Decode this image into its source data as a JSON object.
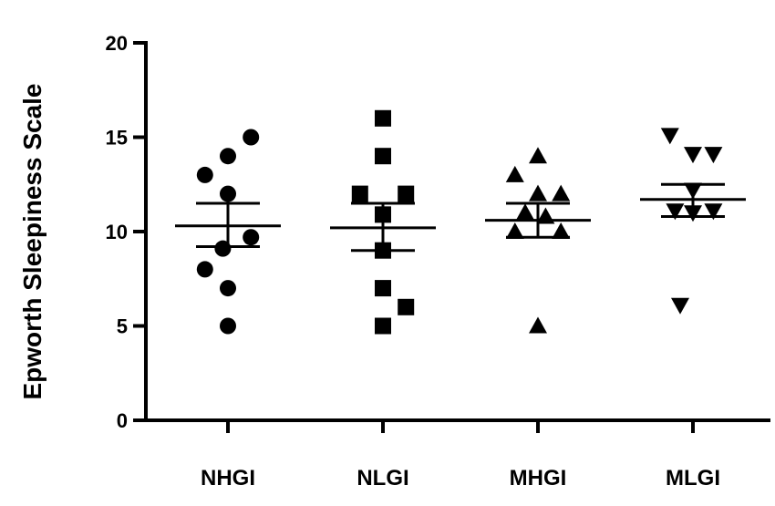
{
  "chart_data": {
    "type": "scatter",
    "title": "",
    "xlabel": "",
    "ylabel": "Epworth Sleepiness Scale",
    "ylim": [
      0,
      20
    ],
    "yticks": [
      0,
      5,
      10,
      15,
      20
    ],
    "grid": false,
    "legend": "none",
    "categories": [
      "NHGI",
      "NLGI",
      "MHGI",
      "MLGI"
    ],
    "series": [
      {
        "category": "NHGI",
        "marker": "circle",
        "mean": 10.3,
        "sem_upper": 11.5,
        "sem_lower": 9.2,
        "points": [
          {
            "offset": 0.9,
            "y": 15
          },
          {
            "offset": 0.0,
            "y": 14
          },
          {
            "offset": -0.9,
            "y": 13
          },
          {
            "offset": 0.0,
            "y": 12
          },
          {
            "offset": 0.9,
            "y": 9.7
          },
          {
            "offset": -0.2,
            "y": 9.1
          },
          {
            "offset": -0.9,
            "y": 8
          },
          {
            "offset": 0.0,
            "y": 7
          },
          {
            "offset": 0.0,
            "y": 5
          }
        ]
      },
      {
        "category": "NLGI",
        "marker": "square",
        "mean": 10.2,
        "sem_upper": 11.5,
        "sem_lower": 9.0,
        "points": [
          {
            "offset": 0.0,
            "y": 16
          },
          {
            "offset": 0.0,
            "y": 14
          },
          {
            "offset": -0.9,
            "y": 12
          },
          {
            "offset": 0.9,
            "y": 12
          },
          {
            "offset": 0.0,
            "y": 10.9
          },
          {
            "offset": 0.0,
            "y": 9
          },
          {
            "offset": 0.0,
            "y": 7
          },
          {
            "offset": 0.9,
            "y": 6
          },
          {
            "offset": 0.0,
            "y": 5
          }
        ]
      },
      {
        "category": "MHGI",
        "marker": "triangle-up",
        "mean": 10.6,
        "sem_upper": 11.5,
        "sem_lower": 9.7,
        "points": [
          {
            "offset": 0.0,
            "y": 14
          },
          {
            "offset": -0.9,
            "y": 13
          },
          {
            "offset": 0.0,
            "y": 12
          },
          {
            "offset": 0.9,
            "y": 12
          },
          {
            "offset": -0.5,
            "y": 11
          },
          {
            "offset": 0.3,
            "y": 10.8
          },
          {
            "offset": -0.9,
            "y": 10
          },
          {
            "offset": 0.9,
            "y": 10
          },
          {
            "offset": 0.0,
            "y": 5
          }
        ]
      },
      {
        "category": "MLGI",
        "marker": "triangle-down",
        "mean": 11.7,
        "sem_upper": 12.5,
        "sem_lower": 10.8,
        "points": [
          {
            "offset": -0.9,
            "y": 15.1
          },
          {
            "offset": 0.0,
            "y": 14.1
          },
          {
            "offset": 0.8,
            "y": 14.1
          },
          {
            "offset": 0.0,
            "y": 12.2
          },
          {
            "offset": -0.7,
            "y": 11.1
          },
          {
            "offset": 0.8,
            "y": 11.1
          },
          {
            "offset": 0.0,
            "y": 11
          },
          {
            "offset": -0.5,
            "y": 6.1
          }
        ]
      }
    ]
  }
}
